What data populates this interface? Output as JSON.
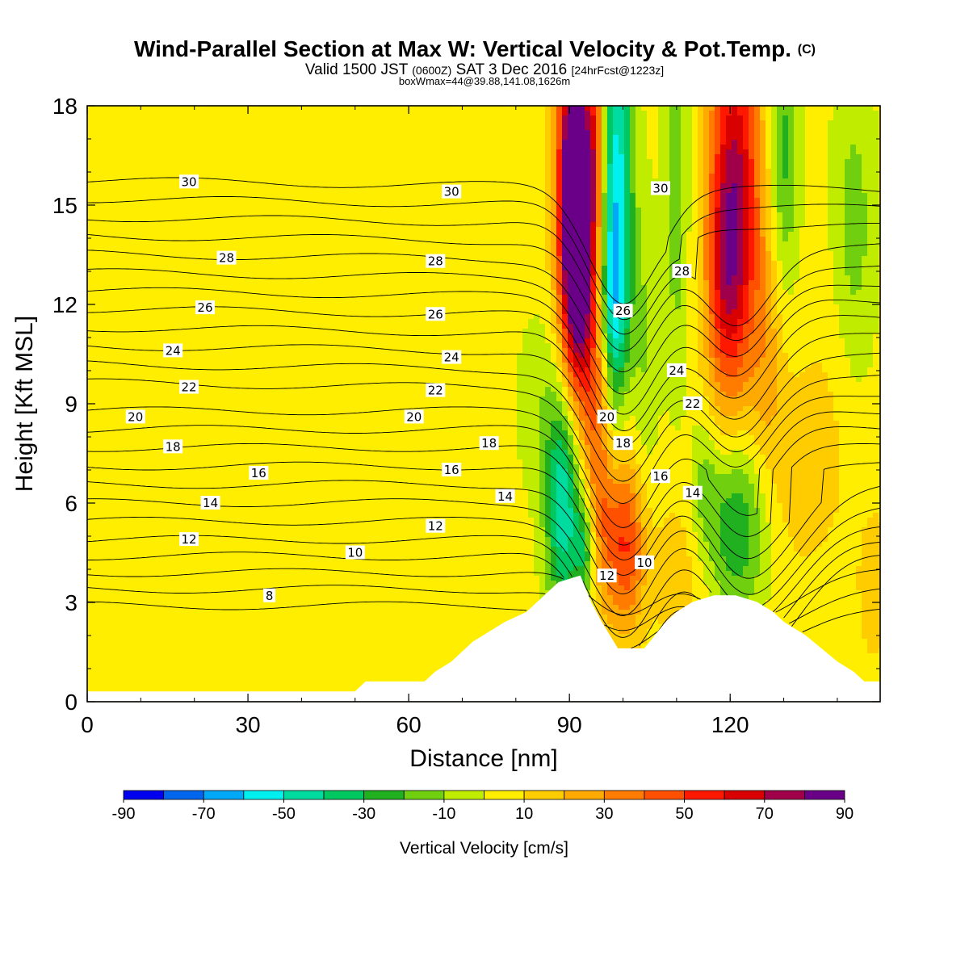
{
  "chart_data": {
    "type": "heatmap",
    "title": "Wind-Parallel Section at Max W: Vertical Velocity & Pot.Temp.",
    "title_suffix": "(C)",
    "subtitle_parts": [
      "Valid 1500 JST",
      "(0600Z)",
      "SAT 3 Dec 2016",
      "[24hrFcst@1223z]"
    ],
    "info_line": "boxWmax=44@39.88,141.08,1626m",
    "xlabel": "Distance [nm]",
    "ylabel": "Height [Kft MSL]",
    "xlim": [
      0,
      148
    ],
    "ylim": [
      0,
      18
    ],
    "x_ticks": [
      "0",
      "30",
      "60",
      "90",
      "120"
    ],
    "y_ticks": [
      "0",
      "3",
      "6",
      "9",
      "12",
      "15",
      "18"
    ],
    "colorbar": {
      "label": "Vertical Velocity [cm/s]",
      "min": -90,
      "max": 90,
      "step": 10,
      "tick_labels": [
        "-90",
        "-70",
        "-50",
        "-30",
        "-10",
        "10",
        "30",
        "50",
        "70",
        "90"
      ],
      "colors": [
        "#0000ee",
        "#0066ee",
        "#00a8f8",
        "#00f0f0",
        "#00dba0",
        "#00c860",
        "#20b020",
        "#70d010",
        "#c0ec00",
        "#ffee00",
        "#ffcc00",
        "#ffaa00",
        "#ff7c00",
        "#ff5000",
        "#ff1800",
        "#d80000",
        "#a0004a",
        "#6a0088"
      ]
    },
    "terrain_kft": [
      [
        0,
        0.3
      ],
      [
        50,
        0.3
      ],
      [
        52,
        0.6
      ],
      [
        63,
        0.6
      ],
      [
        65,
        0.9
      ],
      [
        68,
        1.2
      ],
      [
        72,
        1.8
      ],
      [
        78,
        2.4
      ],
      [
        82,
        2.7
      ],
      [
        84,
        3.0
      ],
      [
        86,
        3.3
      ],
      [
        88,
        3.6
      ],
      [
        92,
        3.8
      ],
      [
        94,
        3.0
      ],
      [
        96,
        2.4
      ],
      [
        99,
        1.6
      ],
      [
        104,
        1.6
      ],
      [
        108,
        2.4
      ],
      [
        110,
        2.7
      ],
      [
        113,
        3.0
      ],
      [
        117,
        3.2
      ],
      [
        121,
        3.2
      ],
      [
        125,
        3.0
      ],
      [
        128,
        2.7
      ],
      [
        130,
        2.4
      ],
      [
        134,
        2.0
      ],
      [
        137,
        1.6
      ],
      [
        140,
        1.2
      ],
      [
        143,
        0.9
      ],
      [
        145,
        0.6
      ],
      [
        148,
        0.6
      ]
    ],
    "contour_levels": [
      8,
      10,
      12,
      14,
      16,
      18,
      20,
      22,
      24,
      26,
      28,
      30
    ],
    "contour_labels": [
      {
        "text": "30",
        "x": 19,
        "y": 15.7
      },
      {
        "text": "30",
        "x": 68,
        "y": 15.4
      },
      {
        "text": "30",
        "x": 107,
        "y": 15.5
      },
      {
        "text": "28",
        "x": 26,
        "y": 13.4
      },
      {
        "text": "28",
        "x": 65,
        "y": 13.3
      },
      {
        "text": "28",
        "x": 111,
        "y": 13.0
      },
      {
        "text": "26",
        "x": 22,
        "y": 11.9
      },
      {
        "text": "26",
        "x": 65,
        "y": 11.7
      },
      {
        "text": "26",
        "x": 100,
        "y": 11.8
      },
      {
        "text": "24",
        "x": 16,
        "y": 10.6
      },
      {
        "text": "24",
        "x": 68,
        "y": 10.4
      },
      {
        "text": "24",
        "x": 110,
        "y": 10.0
      },
      {
        "text": "22",
        "x": 19,
        "y": 9.5
      },
      {
        "text": "22",
        "x": 65,
        "y": 9.4
      },
      {
        "text": "22",
        "x": 113,
        "y": 9.0
      },
      {
        "text": "20",
        "x": 9,
        "y": 8.6
      },
      {
        "text": "20",
        "x": 61,
        "y": 8.6
      },
      {
        "text": "20",
        "x": 97,
        "y": 8.6
      },
      {
        "text": "18",
        "x": 16,
        "y": 7.7
      },
      {
        "text": "18",
        "x": 75,
        "y": 7.8
      },
      {
        "text": "18",
        "x": 100,
        "y": 7.8
      },
      {
        "text": "16",
        "x": 32,
        "y": 6.9
      },
      {
        "text": "16",
        "x": 68,
        "y": 7.0
      },
      {
        "text": "16",
        "x": 107,
        "y": 6.8
      },
      {
        "text": "14",
        "x": 23,
        "y": 6.0
      },
      {
        "text": "14",
        "x": 78,
        "y": 6.2
      },
      {
        "text": "14",
        "x": 113,
        "y": 6.3
      },
      {
        "text": "12",
        "x": 19,
        "y": 4.9
      },
      {
        "text": "12",
        "x": 65,
        "y": 5.3
      },
      {
        "text": "12",
        "x": 97,
        "y": 3.8
      },
      {
        "text": "10",
        "x": 50,
        "y": 4.5
      },
      {
        "text": "10",
        "x": 104,
        "y": 4.2
      },
      {
        "text": "8",
        "x": 34,
        "y": 3.2
      }
    ],
    "w_blobs": [
      {
        "x": 91,
        "y": 16.0,
        "sx": 2.2,
        "sy": 3.5,
        "a": 92
      },
      {
        "x": 92,
        "y": 13.0,
        "sx": 2.4,
        "sy": 3.0,
        "a": 65
      },
      {
        "x": 99,
        "y": 15.5,
        "sx": 2.0,
        "sy": 5.0,
        "a": -55
      },
      {
        "x": 98,
        "y": 10.5,
        "sx": 1.6,
        "sy": 3.0,
        "a": -40
      },
      {
        "x": 89,
        "y": 6.0,
        "sx": 2.4,
        "sy": 2.4,
        "a": -55
      },
      {
        "x": 93,
        "y": 4.6,
        "sx": 1.4,
        "sy": 1.2,
        "a": -35
      },
      {
        "x": 97,
        "y": 6.2,
        "sx": 3.0,
        "sy": 2.4,
        "a": 45
      },
      {
        "x": 101,
        "y": 4.6,
        "sx": 2.4,
        "sy": 1.8,
        "a": 35
      },
      {
        "x": 97,
        "y": 9.6,
        "sx": 2.2,
        "sy": 1.4,
        "a": 25
      },
      {
        "x": 121,
        "y": 15.5,
        "sx": 3.4,
        "sy": 4.0,
        "a": 65
      },
      {
        "x": 119,
        "y": 12.5,
        "sx": 2.6,
        "sy": 2.6,
        "a": 30
      },
      {
        "x": 127,
        "y": 10.5,
        "sx": 2.4,
        "sy": 3.0,
        "a": 18
      },
      {
        "x": 130,
        "y": 16.5,
        "sx": 2.0,
        "sy": 3.0,
        "a": -28
      },
      {
        "x": 110,
        "y": 15.5,
        "sx": 1.7,
        "sy": 4.5,
        "a": -20
      },
      {
        "x": 104,
        "y": 10.5,
        "sx": 2.0,
        "sy": 3.5,
        "a": -14
      },
      {
        "x": 121,
        "y": 5.3,
        "sx": 4.0,
        "sy": 1.9,
        "a": -35
      },
      {
        "x": 115,
        "y": 6.5,
        "sx": 1.8,
        "sy": 1.5,
        "a": -15
      },
      {
        "x": 143,
        "y": 14.0,
        "sx": 3.0,
        "sy": 3.5,
        "a": -20
      },
      {
        "x": 111,
        "y": 4.0,
        "sx": 4.0,
        "sy": 2.2,
        "a": 12
      },
      {
        "x": 133,
        "y": 7.0,
        "sx": 3.5,
        "sy": 2.0,
        "a": 12
      },
      {
        "x": 140,
        "y": 9.0,
        "sx": 4.0,
        "sy": 3.5,
        "a": 8
      },
      {
        "x": 147,
        "y": 3.5,
        "sx": 2.0,
        "sy": 1.5,
        "a": 15
      },
      {
        "x": 84,
        "y": 9.0,
        "sx": 3.0,
        "sy": 2.0,
        "a": -10
      },
      {
        "x": 95,
        "y": 17.0,
        "sx": 1.0,
        "sy": 2.0,
        "a": 30
      },
      {
        "x": 35,
        "y": 5.0,
        "sx": 10.0,
        "sy": 3.6,
        "a": 6
      },
      {
        "x": 10,
        "y": 1.0,
        "sx": 8.0,
        "sy": 1.0,
        "a": 3
      },
      {
        "x": 65,
        "y": 12.0,
        "sx": 2.5,
        "sy": 3.0,
        "a": 2
      },
      {
        "x": 49,
        "y": 14.5,
        "sx": 5.0,
        "sy": 3.5,
        "a": 2
      }
    ]
  }
}
